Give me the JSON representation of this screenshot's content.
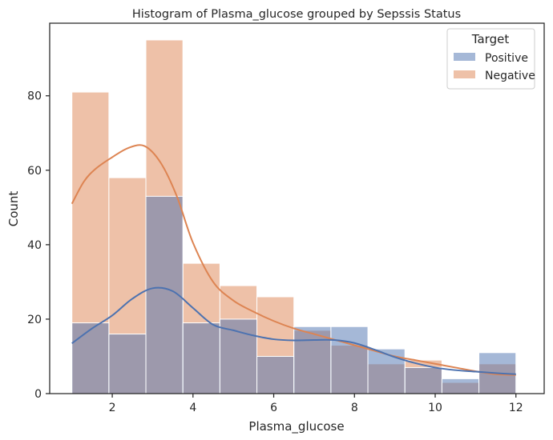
{
  "chart_data": {
    "type": "bar",
    "title": "Histogram of Plasma_glucose grouped by Sepssis  Status",
    "xlabel": "Plasma_glucose",
    "ylabel": "Count",
    "xlim": [
      0.45,
      12.7
    ],
    "ylim": [
      0,
      99.5
    ],
    "xticks": [
      2,
      4,
      6,
      8,
      10,
      12
    ],
    "yticks": [
      0,
      20,
      40,
      60,
      80
    ],
    "bin_edges": [
      1.0,
      1.917,
      2.833,
      3.75,
      4.667,
      5.583,
      6.5,
      7.417,
      8.333,
      9.25,
      10.167,
      11.083,
      12.0
    ],
    "legend": {
      "title": "Target",
      "position": "upper-right"
    },
    "series": [
      {
        "name": "Positive",
        "color": "#4c72b0",
        "counts": [
          19,
          16,
          53,
          19,
          20,
          10,
          18,
          18,
          12,
          7,
          4,
          11
        ],
        "kde_x": [
          1.0,
          1.5,
          2.0,
          2.5,
          3.0,
          3.5,
          4.0,
          4.5,
          5.0,
          5.5,
          6.0,
          6.5,
          7.0,
          7.5,
          8.0,
          8.5,
          9.0,
          9.5,
          10.0,
          10.5,
          11.0,
          11.5,
          12.0
        ],
        "kde_y": [
          13.5,
          17.5,
          21.0,
          25.5,
          28.3,
          27.5,
          23.0,
          18.5,
          17.0,
          15.6,
          14.6,
          14.3,
          14.4,
          14.4,
          13.6,
          11.8,
          9.8,
          8.2,
          7.0,
          6.3,
          5.9,
          5.5,
          5.2
        ]
      },
      {
        "name": "Negative",
        "color": "#dd8452",
        "counts": [
          81,
          58,
          95,
          35,
          29,
          26,
          17,
          13,
          8,
          9,
          3,
          8
        ],
        "kde_x": [
          1.0,
          1.3,
          1.6,
          2.0,
          2.4,
          2.8,
          3.2,
          3.6,
          4.0,
          4.5,
          5.0,
          5.5,
          6.0,
          6.5,
          7.0,
          7.5,
          8.0,
          8.5,
          9.0,
          9.5,
          10.0,
          10.5,
          11.0,
          11.5,
          12.0
        ],
        "kde_y": [
          51.0,
          57.0,
          60.5,
          63.5,
          66.0,
          66.5,
          62.0,
          53.0,
          40.5,
          30.0,
          25.0,
          22.0,
          19.5,
          17.5,
          16.0,
          14.5,
          13.0,
          11.5,
          10.0,
          9.0,
          8.0,
          7.0,
          6.0,
          5.2,
          5.0
        ]
      }
    ]
  }
}
